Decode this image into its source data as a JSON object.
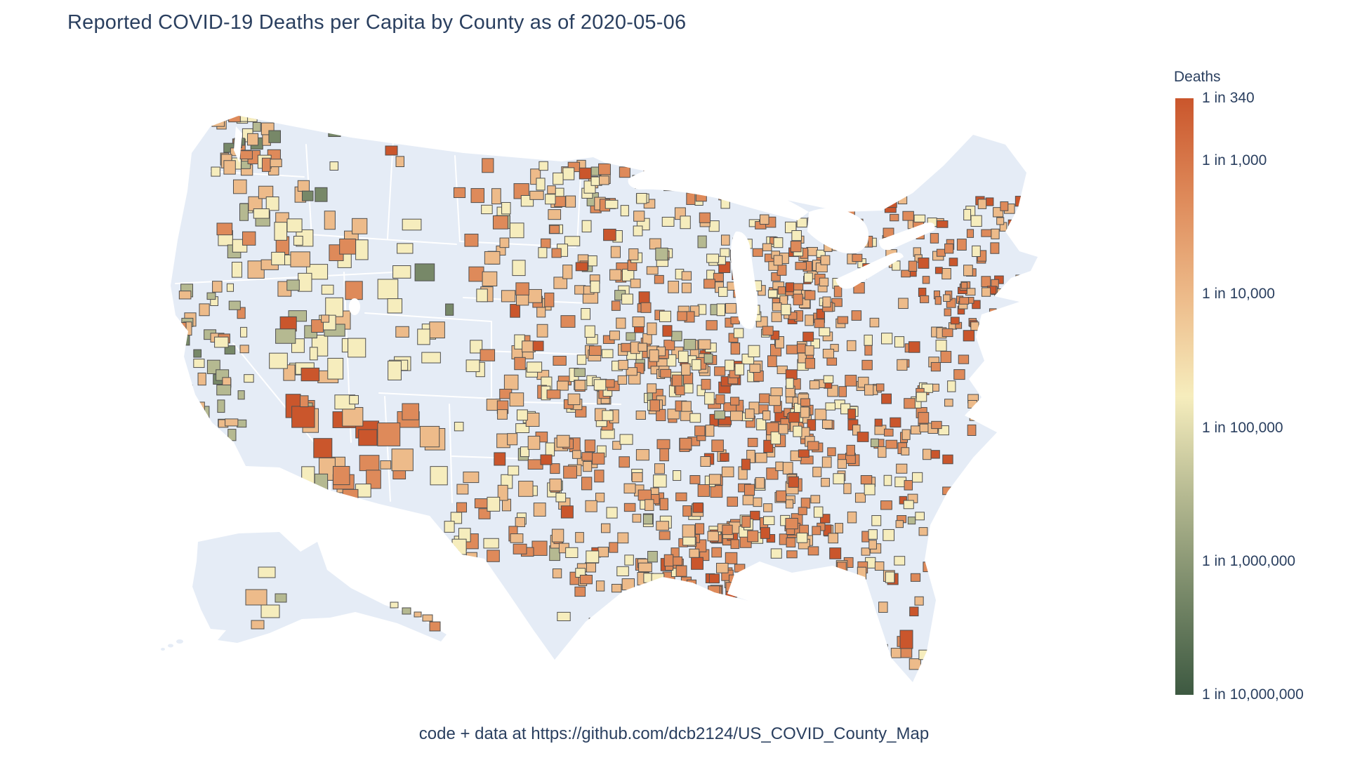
{
  "title": "Reported COVID-19 Deaths per Capita by County as of 2020-05-06",
  "caption": "code + data at https://github.com/dcb2124/US_COVID_County_Map",
  "colors": {
    "text": "#2a3f5f",
    "figure_bg": "#ffffff"
  },
  "colorbar": {
    "title": "Deaths",
    "orientation": "vertical",
    "log_scale": true,
    "top_value": 340,
    "bottom_value": 10000000,
    "gradient_top_to_bottom": [
      "#CA562C",
      "#DE8A5A",
      "#EDBB8A",
      "#F6EDBD",
      "#B5B991",
      "#778868",
      "#3D5941"
    ],
    "ticks": [
      {
        "label": "1 in 340",
        "value": 340
      },
      {
        "label": "1 in 1,000",
        "value": 1000
      },
      {
        "label": "1 in 10,000",
        "value": 10000
      },
      {
        "label": "1 in 100,000",
        "value": 100000
      },
      {
        "label": "1 in 1,000,000",
        "value": 1000000
      },
      {
        "label": "1 in 10,000,000",
        "value": 10000000
      }
    ]
  },
  "chart_data": {
    "type": "choropleth",
    "geography": "US counties (Albers USA projection, incl. Alaska and Hawaii insets)",
    "value_encoding": "deaths per capita, log color scale from 1 in 340 (dark red) to 1 in 10,000,000 (dark green)",
    "legend_title": "Deaths",
    "legend_ticks": [
      "1 in 340",
      "1 in 1,000",
      "1 in 10,000",
      "1 in 100,000",
      "1 in 1,000,000",
      "1 in 10,000,000"
    ],
    "no_data_color": "#E5ECF6",
    "notable_pattern": "dense dark-orange clusters in the Northeast corridor, Louisiana/Deep South, Michigan and urban counties; sparse pale counties across the plains and mountain west; Miami-Dade dark red"
  },
  "map": {
    "no_data_color": "#E5ECF6",
    "county_border": "#4f4f4f",
    "state_line": "#ffffff",
    "palette": [
      "#CA562C",
      "#DE8A5A",
      "#EDBB8A",
      "#F6EDBD",
      "#B5B991",
      "#778868",
      "#3D5941"
    ],
    "regions": [
      [
        "washington",
        300,
        150,
        402,
        252,
        40,
        10,
        20,
        [
          1,
          6,
          7,
          5,
          2,
          1,
          0
        ]
      ],
      [
        "oregon-idaho",
        296,
        252,
        470,
        400,
        26,
        12,
        26,
        [
          0,
          3,
          6,
          8,
          3,
          1,
          0
        ]
      ],
      [
        "california",
        248,
        400,
        362,
        676,
        48,
        9,
        20,
        [
          0,
          3,
          6,
          8,
          5,
          2,
          0
        ]
      ],
      [
        "mountain-west",
        380,
        300,
        640,
        560,
        48,
        14,
        30,
        [
          1,
          4,
          6,
          8,
          3,
          1,
          0
        ]
      ],
      [
        "arizona-newmexico",
        404,
        560,
        648,
        716,
        30,
        16,
        34,
        [
          1,
          6,
          5,
          3,
          1,
          0,
          0
        ]
      ],
      [
        "northern-plains",
        644,
        222,
        862,
        560,
        70,
        12,
        22,
        [
          1,
          5,
          6,
          6,
          1,
          0,
          0
        ]
      ],
      [
        "kansas-oklahoma",
        684,
        540,
        884,
        664,
        45,
        12,
        20,
        [
          1,
          5,
          7,
          5,
          1,
          0,
          0
        ]
      ],
      [
        "west-texas",
        622,
        640,
        800,
        804,
        34,
        12,
        22,
        [
          0,
          4,
          6,
          6,
          1,
          0,
          0
        ]
      ],
      [
        "east-texas",
        780,
        618,
        962,
        904,
        85,
        11,
        19,
        [
          1,
          5,
          8,
          6,
          1,
          0,
          0
        ]
      ],
      [
        "louisiana-mississippi",
        928,
        738,
        1062,
        872,
        55,
        11,
        18,
        [
          4,
          10,
          4,
          1,
          0,
          0,
          0
        ]
      ],
      [
        "deep-south",
        938,
        558,
        1162,
        782,
        120,
        11,
        18,
        [
          2,
          9,
          7,
          3,
          0,
          0,
          0
        ]
      ],
      [
        "tennessee-kentucky",
        898,
        478,
        1162,
        602,
        80,
        11,
        17,
        [
          1,
          6,
          8,
          5,
          1,
          0,
          0
        ]
      ],
      [
        "midwest",
        818,
        358,
        1062,
        560,
        110,
        11,
        17,
        [
          1,
          6,
          8,
          5,
          1,
          0,
          0
        ]
      ],
      [
        "upper-midwest",
        758,
        230,
        1042,
        382,
        70,
        11,
        18,
        [
          1,
          5,
          7,
          6,
          1,
          0,
          0
        ]
      ],
      [
        "michigan-mitten",
        1086,
        330,
        1176,
        464,
        40,
        10,
        16,
        [
          2,
          8,
          5,
          2,
          0,
          0,
          0
        ]
      ],
      [
        "ohio-pennsylvania",
        1040,
        300,
        1252,
        472,
        80,
        10,
        16,
        [
          2,
          8,
          6,
          3,
          0,
          0,
          0
        ]
      ],
      [
        "new-england",
        1248,
        278,
        1462,
        442,
        70,
        9,
        16,
        [
          3,
          9,
          5,
          2,
          0,
          0,
          0
        ]
      ],
      [
        "nyc-metro",
        1330,
        398,
        1424,
        470,
        25,
        8,
        13,
        [
          6,
          8,
          2,
          0,
          0,
          0,
          0
        ]
      ],
      [
        "mid-atlantic",
        1078,
        458,
        1402,
        622,
        90,
        10,
        16,
        [
          2,
          7,
          7,
          4,
          0,
          0,
          0
        ]
      ],
      [
        "southeast",
        1098,
        598,
        1362,
        800,
        90,
        10,
        16,
        [
          2,
          7,
          8,
          4,
          1,
          0,
          0
        ]
      ],
      [
        "florida",
        1180,
        788,
        1332,
        958,
        30,
        11,
        17,
        [
          1,
          5,
          8,
          4,
          0,
          0,
          0
        ]
      ],
      [
        "west-sprinkle",
        360,
        180,
        660,
        700,
        12,
        10,
        18,
        [
          0,
          3,
          6,
          8,
          3,
          2,
          0
        ]
      ]
    ],
    "fixed_counties": [
      [
        1282,
        898,
        18,
        26,
        0
      ],
      [
        549,
        208,
        17,
        13,
        0
      ],
      [
        770,
        648,
        16,
        14,
        0
      ]
    ],
    "alaska_counties": [
      [
        368,
        808,
        24,
        15,
        3
      ],
      [
        350,
        840,
        30,
        22,
        2
      ],
      [
        372,
        862,
        26,
        18,
        3
      ],
      [
        358,
        884,
        18,
        12,
        2
      ],
      [
        392,
        846,
        16,
        12,
        4
      ]
    ],
    "hawaii_islands": [
      [
        556,
        858,
        11,
        8,
        3
      ],
      [
        573,
        866,
        12,
        9,
        4
      ],
      [
        590,
        872,
        10,
        7,
        2
      ],
      [
        602,
        876,
        14,
        9,
        2
      ],
      [
        612,
        886,
        15,
        13,
        1
      ]
    ]
  }
}
